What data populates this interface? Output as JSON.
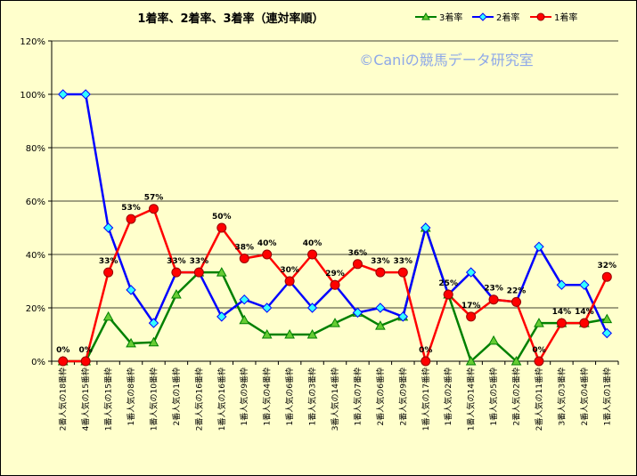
{
  "chart_data": {
    "type": "line",
    "title": "1着率、2着率、3着率（連対率順）",
    "watermark": "©Caniの競馬データ研究室",
    "ylim": [
      0,
      1.2
    ],
    "yticks": [
      "0%",
      "20%",
      "40%",
      "60%",
      "80%",
      "100%",
      "120%"
    ],
    "grid": true,
    "legend_position": "top-right",
    "categories": [
      "2番人気の18番枠",
      "4番人気の15番枠",
      "1番人気の15番枠",
      "1番人気の8番枠",
      "1番人気の10番枠",
      "2番人気の1番枠",
      "2番人気の16番枠",
      "1番人気の16番枠",
      "1番人気の9番枠",
      "1番人気の4番枠",
      "1番人気の6番枠",
      "1番人気の3番枠",
      "3番人気の14番枠",
      "1番人気の7番枠",
      "2番人気の6番枠",
      "2番人気の9番枠",
      "1番人気の17番枠",
      "1番人気の2番枠",
      "1番人気の14番枠",
      "1番人気の5番枠",
      "2番人気の2番枠",
      "2番人気の11番枠",
      "3番人気の3番枠",
      "2番人気の4番枠",
      "1番人気の1番枠"
    ],
    "series": [
      {
        "name": "3着率",
        "color": "#008000",
        "marker": "triangle",
        "marker_fill": "#66cc33",
        "values": [
          0,
          0,
          0.167,
          0.067,
          0.071,
          0.25,
          0.333,
          0.333,
          0.154,
          0.1,
          0.1,
          0.1,
          0.143,
          0.182,
          0.133,
          0.167,
          0.5,
          0.25,
          0,
          0.077,
          0,
          0.143,
          0.143,
          0.143,
          0.158
        ]
      },
      {
        "name": "2着率",
        "color": "#0000ff",
        "marker": "diamond",
        "marker_fill": "#33ffff",
        "values": [
          1.0,
          1.0,
          0.5,
          0.267,
          0.143,
          0.333,
          0.333,
          0.167,
          0.231,
          0.2,
          0.3,
          0.2,
          0.286,
          0.182,
          0.2,
          0.167,
          0.5,
          0.25,
          0.333,
          0.231,
          0.222,
          0.429,
          0.286,
          0.286,
          0.105
        ]
      },
      {
        "name": "1着率",
        "color": "#ff0000",
        "marker": "circle",
        "marker_fill": "#ff0000",
        "values": [
          0,
          0,
          0.333,
          0.533,
          0.571,
          0.333,
          0.333,
          0.5,
          0.385,
          0.4,
          0.3,
          0.4,
          0.286,
          0.364,
          0.333,
          0.333,
          0,
          0.25,
          0.167,
          0.231,
          0.222,
          0,
          0.143,
          0.143,
          0.316
        ],
        "data_labels": [
          "0%",
          "0%",
          "33%",
          "53%",
          "57%",
          "33%",
          "33%",
          "50%",
          "38%",
          "40%",
          "30%",
          "40%",
          "29%",
          "36%",
          "33%",
          "33%",
          "0%",
          "25%",
          "17%",
          "23%",
          "22%",
          "0%",
          "14%",
          "14%",
          "32%"
        ]
      }
    ]
  }
}
